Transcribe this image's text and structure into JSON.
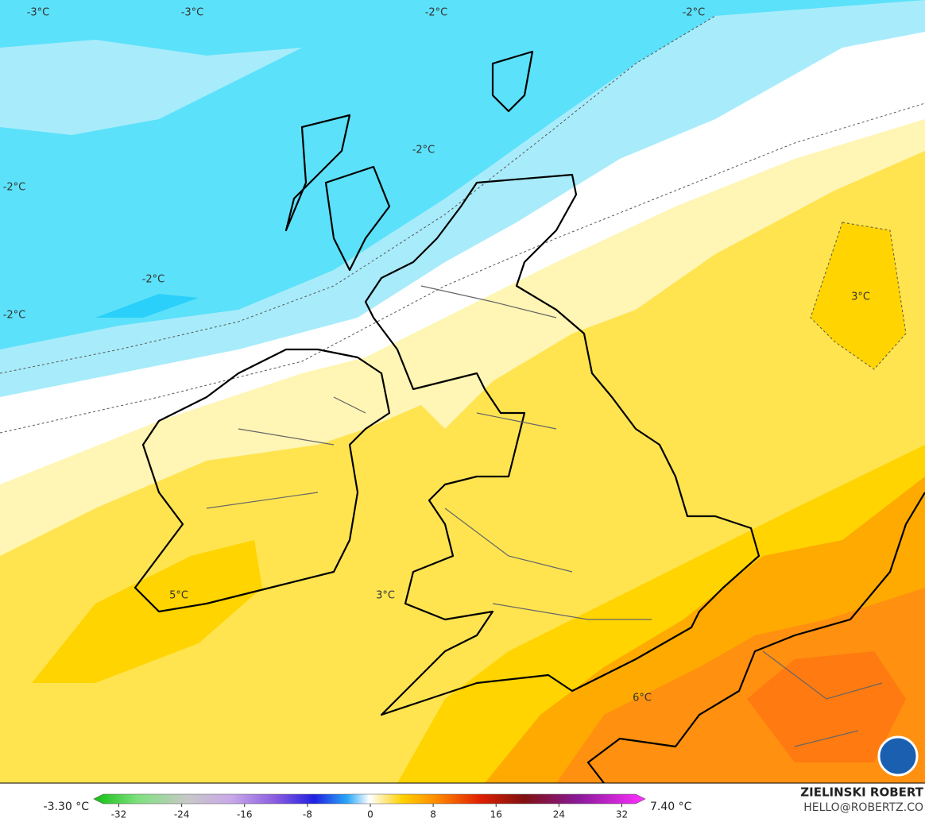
{
  "map": {
    "labels": [
      "-3°C",
      "-3°C",
      "-2°C",
      "-2°C",
      "-2°C",
      "-2°C",
      "-2°C",
      "-2°C",
      "3°C",
      "3°C",
      "5°C",
      "6°C"
    ]
  },
  "colorbar": {
    "min_label": "-3.30 °C",
    "max_label": "7.40 °C",
    "ticks": [
      -32,
      -24,
      -16,
      -8,
      0,
      8,
      16,
      24,
      32
    ]
  },
  "credits": {
    "name": "ZIELINSKI ROBERT",
    "contact": "HELLO@ROBERTZ.CO"
  }
}
